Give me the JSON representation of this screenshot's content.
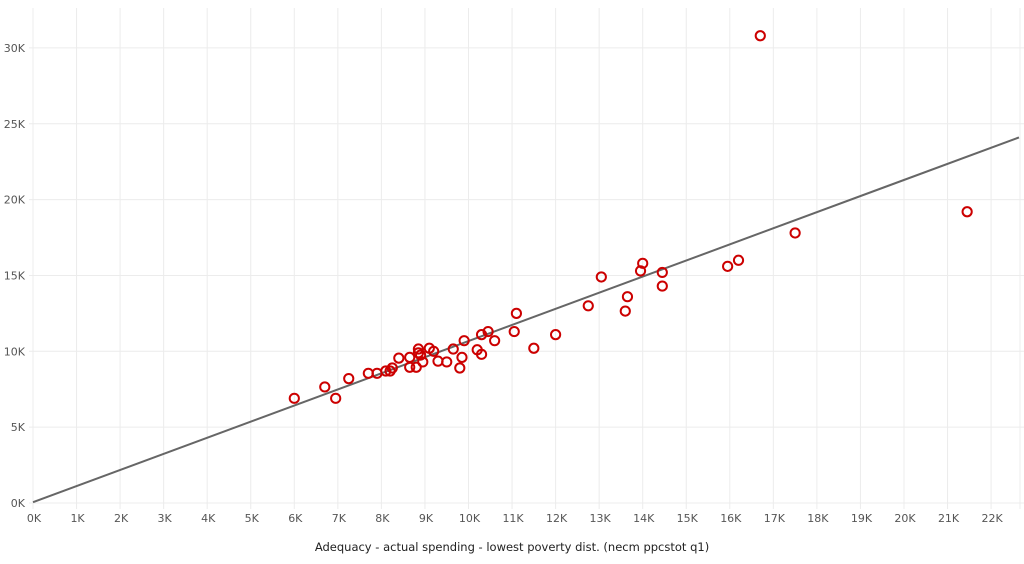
{
  "chart_data": {
    "type": "scatter",
    "title": "",
    "xlabel": "Adequacy - actual spending - lowest poverty dist. (necm ppcstot q1)",
    "ylabel": "",
    "xlim": [
      0,
      22.6
    ],
    "ylim": [
      0,
      32.5
    ],
    "units": "thousands",
    "x_ticks": [
      0,
      1,
      2,
      3,
      4,
      5,
      6,
      7,
      8,
      9,
      10,
      11,
      12,
      13,
      14,
      15,
      16,
      17,
      18,
      19,
      20,
      21,
      22
    ],
    "x_tick_labels": [
      "0K",
      "1K",
      "2K",
      "3K",
      "4K",
      "5K",
      "6K",
      "7K",
      "8K",
      "9K",
      "10K",
      "11K",
      "12K",
      "13K",
      "14K",
      "15K",
      "16K",
      "17K",
      "18K",
      "19K",
      "20K",
      "21K",
      "22K"
    ],
    "y_ticks": [
      0,
      5,
      10,
      15,
      20,
      25,
      30
    ],
    "y_tick_labels": [
      "0K",
      "5K",
      "10K",
      "15K",
      "20K",
      "25K",
      "30K"
    ],
    "grid": true,
    "legend": null,
    "marker_color": "#cc0000",
    "trend_color": "#666666",
    "trend_line": {
      "x": [
        0,
        22.64
      ],
      "y": [
        0.05,
        24.1
      ]
    },
    "points": [
      {
        "x": 6.0,
        "y": 6.9
      },
      {
        "x": 6.7,
        "y": 7.65
      },
      {
        "x": 6.95,
        "y": 6.9
      },
      {
        "x": 7.25,
        "y": 8.2
      },
      {
        "x": 7.7,
        "y": 8.55
      },
      {
        "x": 7.9,
        "y": 8.55
      },
      {
        "x": 8.1,
        "y": 8.7
      },
      {
        "x": 8.2,
        "y": 8.7
      },
      {
        "x": 8.25,
        "y": 8.9
      },
      {
        "x": 8.4,
        "y": 9.55
      },
      {
        "x": 8.65,
        "y": 9.6
      },
      {
        "x": 8.65,
        "y": 8.95
      },
      {
        "x": 8.8,
        "y": 8.95
      },
      {
        "x": 8.85,
        "y": 10.15
      },
      {
        "x": 8.85,
        "y": 9.9
      },
      {
        "x": 8.9,
        "y": 9.75
      },
      {
        "x": 8.95,
        "y": 9.3
      },
      {
        "x": 9.1,
        "y": 10.2
      },
      {
        "x": 9.2,
        "y": 10.0
      },
      {
        "x": 9.3,
        "y": 9.35
      },
      {
        "x": 9.5,
        "y": 9.3
      },
      {
        "x": 9.65,
        "y": 10.15
      },
      {
        "x": 9.8,
        "y": 8.9
      },
      {
        "x": 9.85,
        "y": 9.6
      },
      {
        "x": 9.9,
        "y": 10.7
      },
      {
        "x": 10.2,
        "y": 10.1
      },
      {
        "x": 10.3,
        "y": 11.1
      },
      {
        "x": 10.3,
        "y": 9.8
      },
      {
        "x": 10.45,
        "y": 11.3
      },
      {
        "x": 10.6,
        "y": 10.7
      },
      {
        "x": 11.05,
        "y": 11.3
      },
      {
        "x": 11.1,
        "y": 12.5
      },
      {
        "x": 11.5,
        "y": 10.2
      },
      {
        "x": 12.0,
        "y": 11.1
      },
      {
        "x": 12.75,
        "y": 13.0
      },
      {
        "x": 13.05,
        "y": 14.9
      },
      {
        "x": 13.6,
        "y": 12.65
      },
      {
        "x": 13.65,
        "y": 13.6
      },
      {
        "x": 13.95,
        "y": 15.3
      },
      {
        "x": 14.0,
        "y": 15.8
      },
      {
        "x": 14.45,
        "y": 15.2
      },
      {
        "x": 14.45,
        "y": 14.3
      },
      {
        "x": 15.95,
        "y": 15.6
      },
      {
        "x": 16.2,
        "y": 16.0
      },
      {
        "x": 16.7,
        "y": 30.8
      },
      {
        "x": 17.5,
        "y": 17.8
      },
      {
        "x": 21.45,
        "y": 19.2
      }
    ]
  }
}
